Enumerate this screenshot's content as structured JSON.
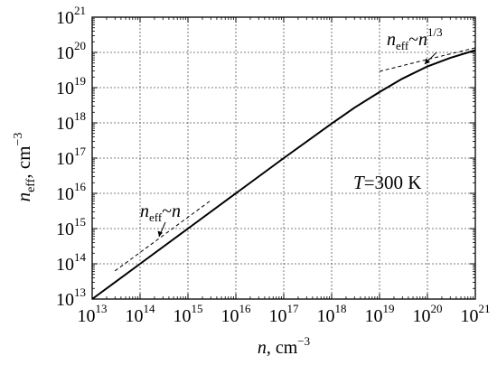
{
  "chart_data": {
    "type": "line",
    "xscale": "log",
    "yscale": "log",
    "xlim": [
      10000000000000.0,
      1e+21
    ],
    "ylim": [
      10000000000000.0,
      1e+21
    ],
    "grid": true,
    "x_ticks": [
      {
        "base": "10",
        "exp": "13"
      },
      {
        "base": "10",
        "exp": "14"
      },
      {
        "base": "10",
        "exp": "15"
      },
      {
        "base": "10",
        "exp": "16"
      },
      {
        "base": "10",
        "exp": "17"
      },
      {
        "base": "10",
        "exp": "18"
      },
      {
        "base": "10",
        "exp": "19"
      },
      {
        "base": "10",
        "exp": "20"
      },
      {
        "base": "10",
        "exp": "21"
      }
    ],
    "y_ticks": [
      {
        "base": "10",
        "exp": "13"
      },
      {
        "base": "10",
        "exp": "14"
      },
      {
        "base": "10",
        "exp": "15"
      },
      {
        "base": "10",
        "exp": "16"
      },
      {
        "base": "10",
        "exp": "17"
      },
      {
        "base": "10",
        "exp": "18"
      },
      {
        "base": "10",
        "exp": "19"
      },
      {
        "base": "10",
        "exp": "20"
      },
      {
        "base": "10",
        "exp": "21"
      }
    ],
    "xlabel": {
      "var": "n",
      "unit": ", cm",
      "unit_exp": "−3"
    },
    "ylabel": {
      "var": "n",
      "sub": "eff",
      "unit": ", cm",
      "unit_exp": "−3"
    },
    "series": [
      {
        "style": "solid",
        "x": [
          10000000000000.0,
          100000000000000.0,
          1000000000000000.0,
          1e+16,
          1e+17,
          1e+18,
          3e+18,
          1e+19,
          3e+19,
          1e+20,
          3e+20,
          1e+21
        ],
        "y": [
          10000000000000.0,
          100000000000000.0,
          1000000000000000.0,
          1e+16,
          1e+17,
          9.5e+17,
          2.7e+18,
          7.5e+18,
          1.8e+19,
          4e+19,
          7e+19,
          1.15e+20
        ]
      },
      {
        "style": "dashed",
        "x": [
          30000000000000.0,
          1000000000000000.0,
          3000000000000000.0
        ],
        "y": [
          63000000000000.0,
          2100000000000000.0,
          6300000000000000.0
        ]
      },
      {
        "style": "dashed",
        "x": [
          1e+19,
          1e+20,
          1e+21
        ],
        "y": [
          2.9e+19,
          6.3e+19,
          1.35e+20
        ]
      }
    ],
    "annotations": {
      "temperature": {
        "var": "T",
        "text": "=300 K"
      },
      "linear": {
        "var": "n",
        "sub": "eff",
        "tilde": "~",
        "var2": "n"
      },
      "cube_root": {
        "var": "n",
        "sub": "eff",
        "tilde": "~",
        "var2": "n",
        "exp": "1/3"
      }
    }
  }
}
